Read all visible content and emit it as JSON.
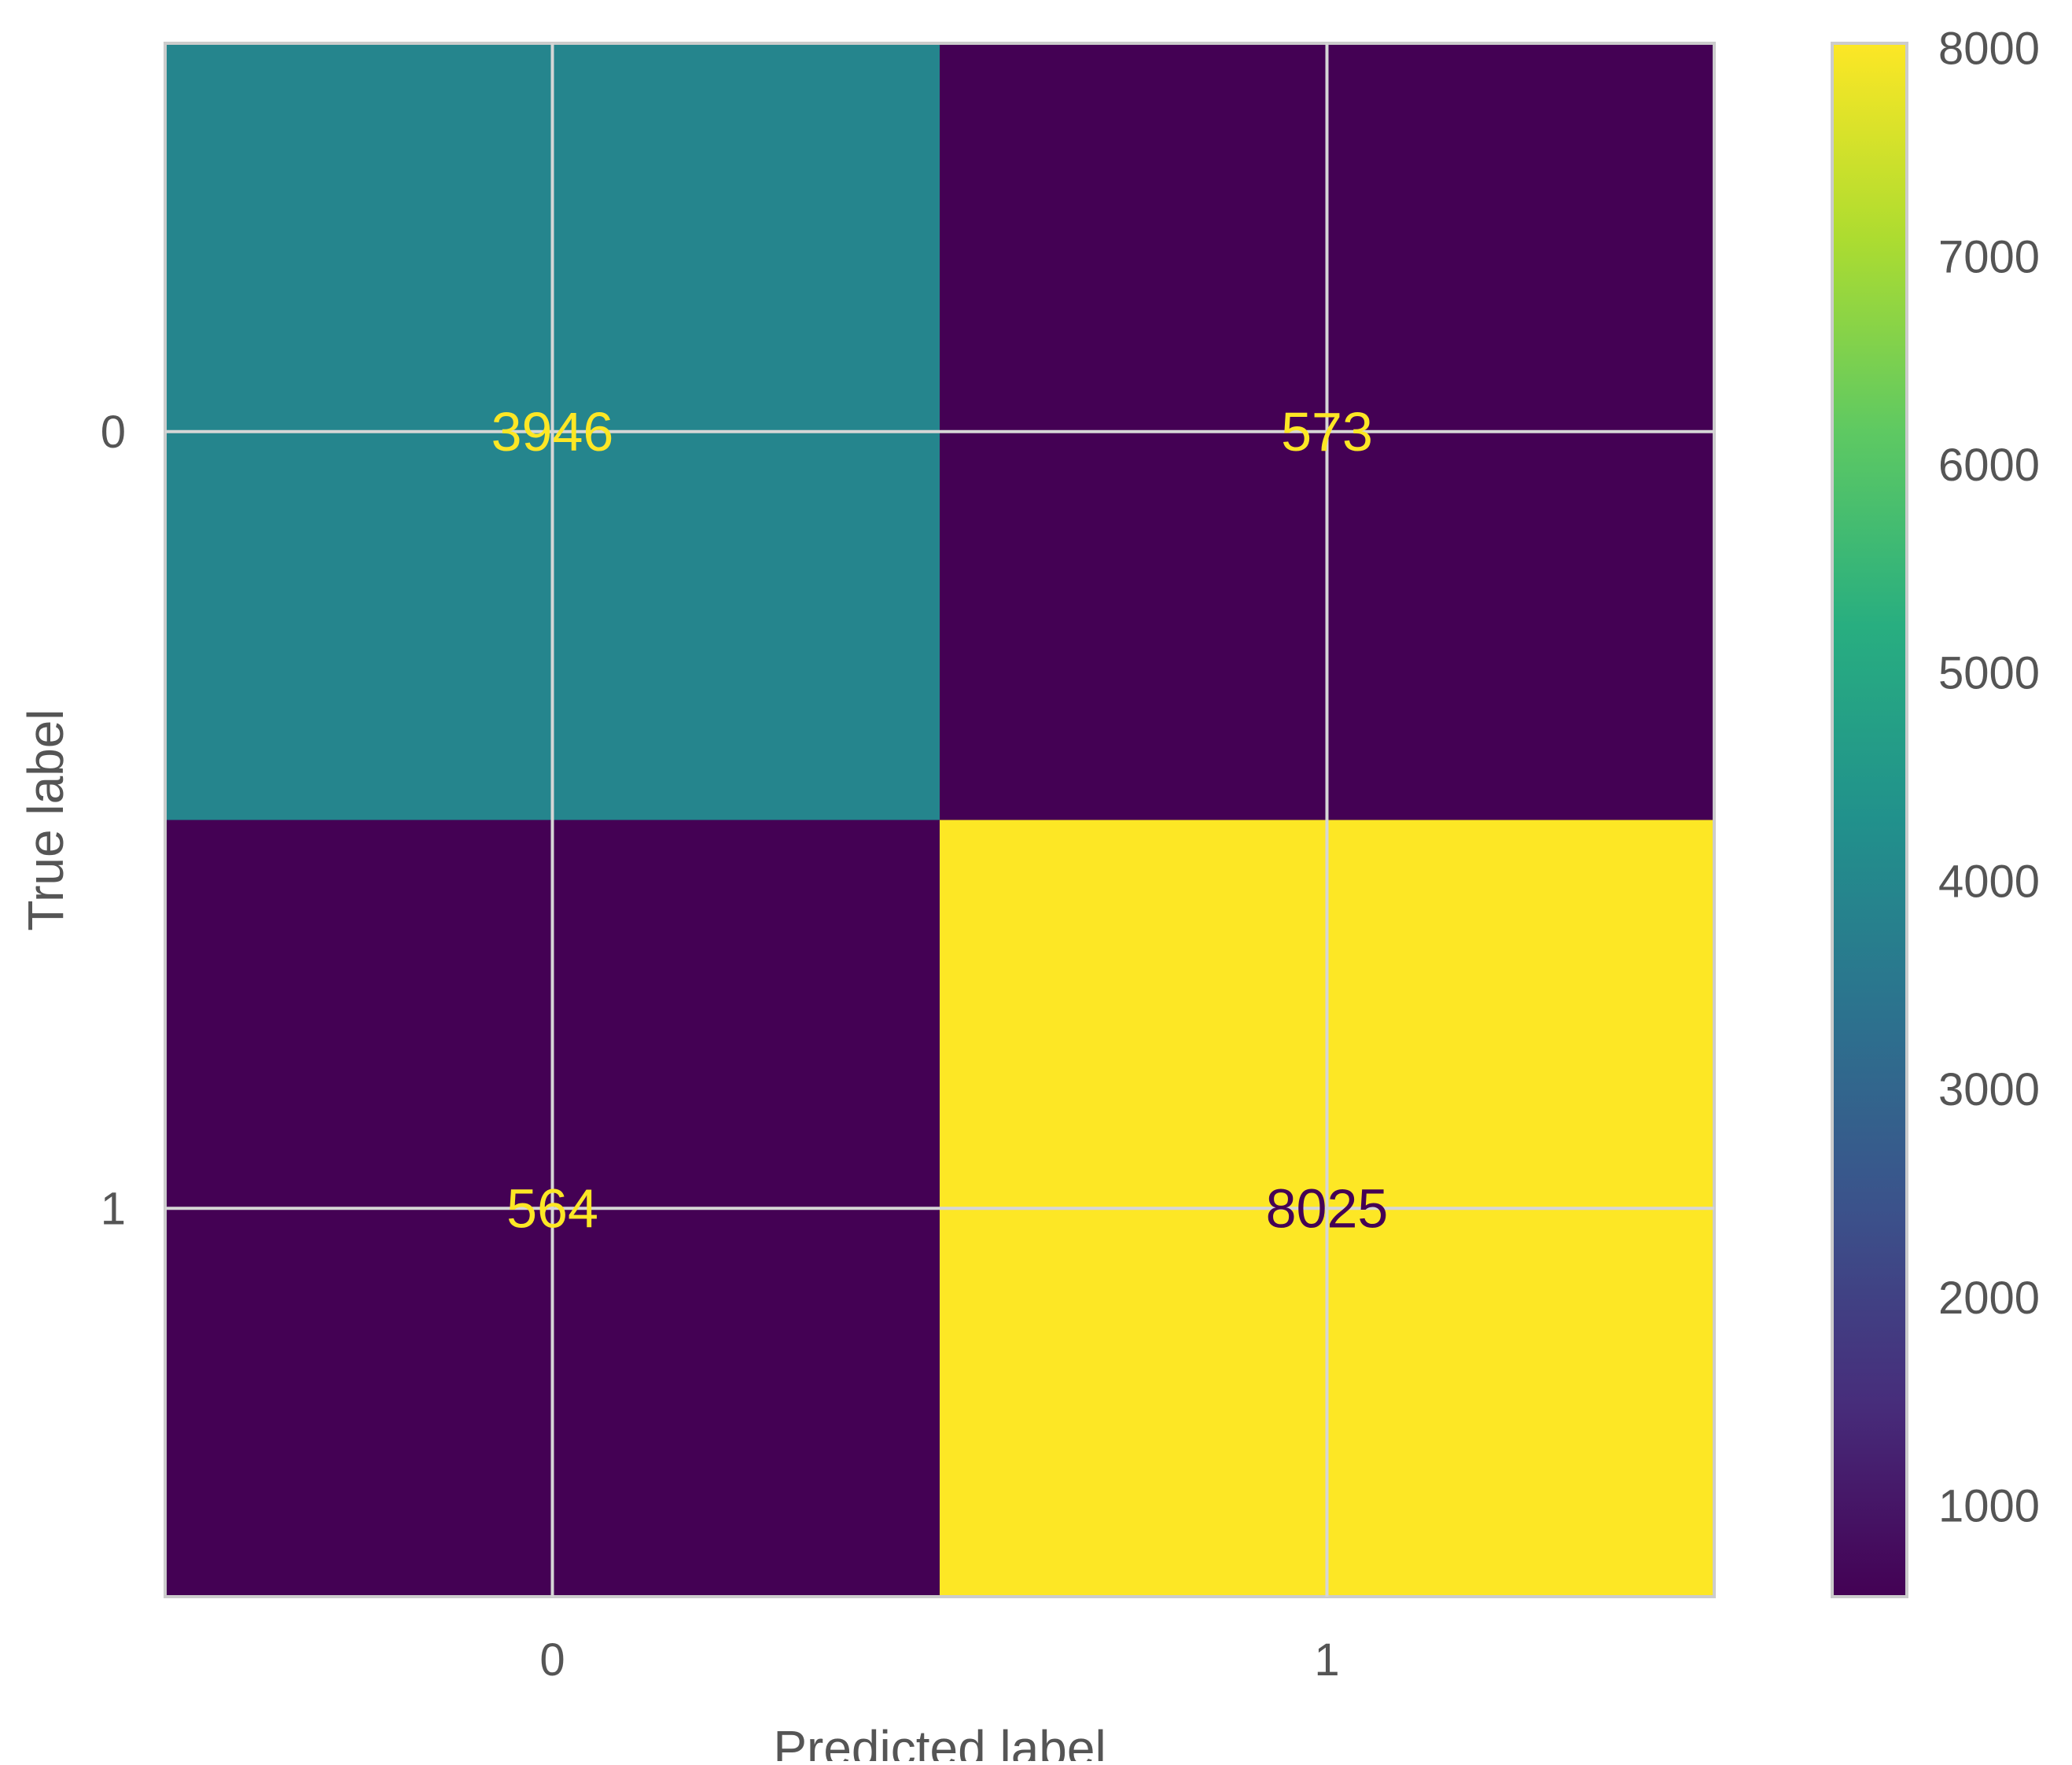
{
  "chart_data": {
    "type": "heatmap",
    "title": "",
    "xlabel": "Predicted label",
    "ylabel": "True label",
    "x_categories": [
      "0",
      "1"
    ],
    "y_categories": [
      "0",
      "1"
    ],
    "matrix": [
      [
        3946,
        573
      ],
      [
        564,
        8025
      ]
    ],
    "colormap": "viridis",
    "grid": true,
    "colorbar": {
      "range": [
        564,
        8025
      ],
      "ticks": [
        1000,
        2000,
        3000,
        4000,
        5000,
        6000,
        7000,
        8000
      ],
      "tick_labels": [
        "1000",
        "2000",
        "3000",
        "4000",
        "5000",
        "6000",
        "7000",
        "8000"
      ]
    },
    "cell_text_colors": {
      "on_dark": "#fde725",
      "on_light": "#440154"
    }
  }
}
